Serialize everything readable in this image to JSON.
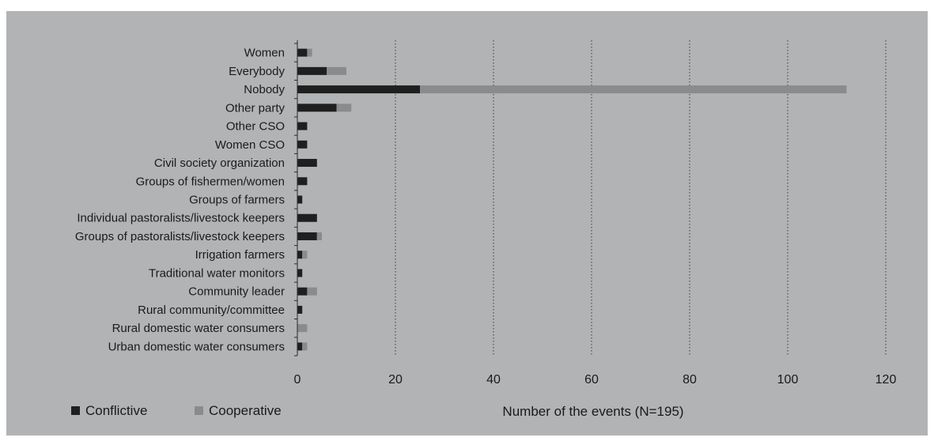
{
  "chart_data": {
    "type": "bar",
    "orientation": "horizontal",
    "stacked": true,
    "categories": [
      "Women",
      "Everybody",
      "Nobody",
      "Other party",
      "Other CSO",
      "Women CSO",
      "Civil society organization",
      "Groups of fishermen/women",
      "Groups of farmers",
      "Individual pastoralists/livestock keepers",
      "Groups of pastoralists/livestock keepers",
      "Irrigation farmers",
      "Traditional water monitors",
      "Community leader",
      "Rural community/committee",
      "Rural domestic water consumers",
      "Urban domestic water consumers"
    ],
    "series": [
      {
        "name": "Conflictive",
        "color": "#1f1f1f",
        "values": [
          2,
          6,
          25,
          8,
          2,
          2,
          4,
          2,
          1,
          4,
          4,
          1,
          1,
          2,
          1,
          0,
          1
        ]
      },
      {
        "name": "Cooperative",
        "color": "#8a8b8d",
        "values": [
          1,
          4,
          87,
          3,
          0,
          0,
          0,
          0,
          0,
          0,
          1,
          1,
          0,
          2,
          0,
          2,
          1
        ]
      }
    ],
    "xlabel": "Number of the events (N=195)",
    "xlim": [
      0,
      120
    ],
    "xticks": [
      0,
      20,
      40,
      60,
      80,
      100,
      120
    ],
    "xtick_labels": [
      "0",
      "20",
      "40",
      "60",
      "80",
      "100",
      "120"
    ],
    "grid": "vertical dotted",
    "legend_position": "bottom-left"
  },
  "colors": {
    "panel_background": "#b2b3b5",
    "text": "#1a1a1a",
    "axis": "#2a2a2a",
    "grid": "#3a3a3a"
  }
}
